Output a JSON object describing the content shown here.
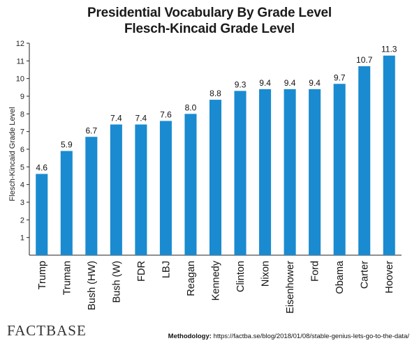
{
  "chart_data": {
    "type": "bar",
    "title": "Presidential Vocabulary By Grade Level",
    "subtitle": "Flesch-Kincaid Grade Level",
    "xlabel": "",
    "ylabel": "Flesch-Kincaid Grade Level",
    "ylim": [
      0,
      12
    ],
    "yticks": [
      1,
      2,
      3,
      4,
      5,
      6,
      7,
      8,
      9,
      10,
      11,
      12
    ],
    "grid": false,
    "categories": [
      "Trump",
      "Truman",
      "Bush (HW)",
      "Bush (W)",
      "FDR",
      "LBJ",
      "Reagan",
      "Kennedy",
      "Clinton",
      "Nixon",
      "Eisenhower",
      "Ford",
      "Obama",
      "Carter",
      "Hoover"
    ],
    "values": [
      4.6,
      5.9,
      6.7,
      7.4,
      7.4,
      7.6,
      8.0,
      8.8,
      9.3,
      9.4,
      9.4,
      9.4,
      9.7,
      10.7,
      11.3
    ],
    "value_labels": [
      "4.6",
      "5.9",
      "6.7",
      "7.4",
      "7.4",
      "7.6",
      "8.0",
      "8.8",
      "9.3",
      "9.4",
      "9.4",
      "9.4",
      "9.7",
      "10.7",
      "11.3"
    ],
    "bar_color": "#1a8bd0"
  },
  "footer": {
    "brand": "FACTBASE",
    "methodology_label": "Methodology:",
    "methodology_url": "https://factba.se/blog/2018/01/08/stable-genius-lets-go-to-the-data/"
  }
}
